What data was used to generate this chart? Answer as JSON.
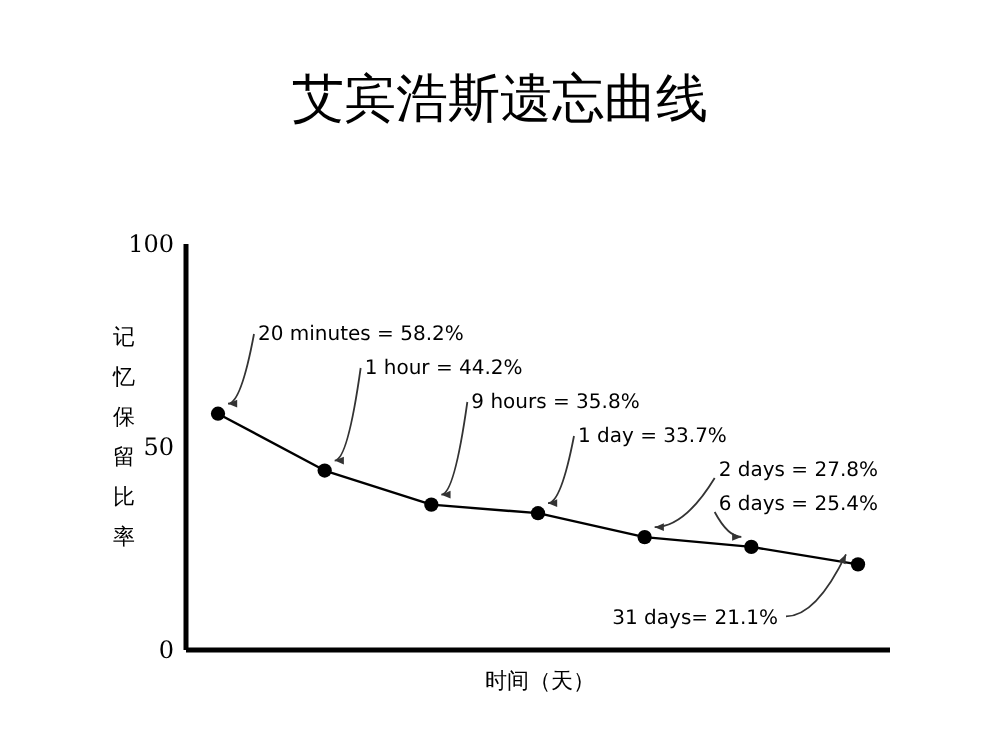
{
  "chart_data": {
    "type": "line",
    "title": "艾宾浩斯遗忘曲线",
    "xlabel": "时间（天）",
    "ylabel": "记忆保留比率",
    "categories": [
      null,
      null,
      null,
      null,
      null,
      null,
      null
    ],
    "series": [
      {
        "color": "#000000",
        "values": [
          58.2,
          44.2,
          35.8,
          33.7,
          27.8,
          25.4,
          21.1
        ],
        "value_labels": [
          "20 minutes = 58.2%",
          "1 hour = 44.2%",
          "9 hours = 35.8%",
          "1 day = 33.7%",
          "2 days = 27.8%",
          "6 days = 25.4%",
          "31 days= 21.1%"
        ]
      }
    ],
    "ylim": [
      0,
      100
    ],
    "yticks": [
      0,
      50,
      100
    ],
    "tick_labels": "y",
    "marker": "circle",
    "line_style": "solid"
  }
}
